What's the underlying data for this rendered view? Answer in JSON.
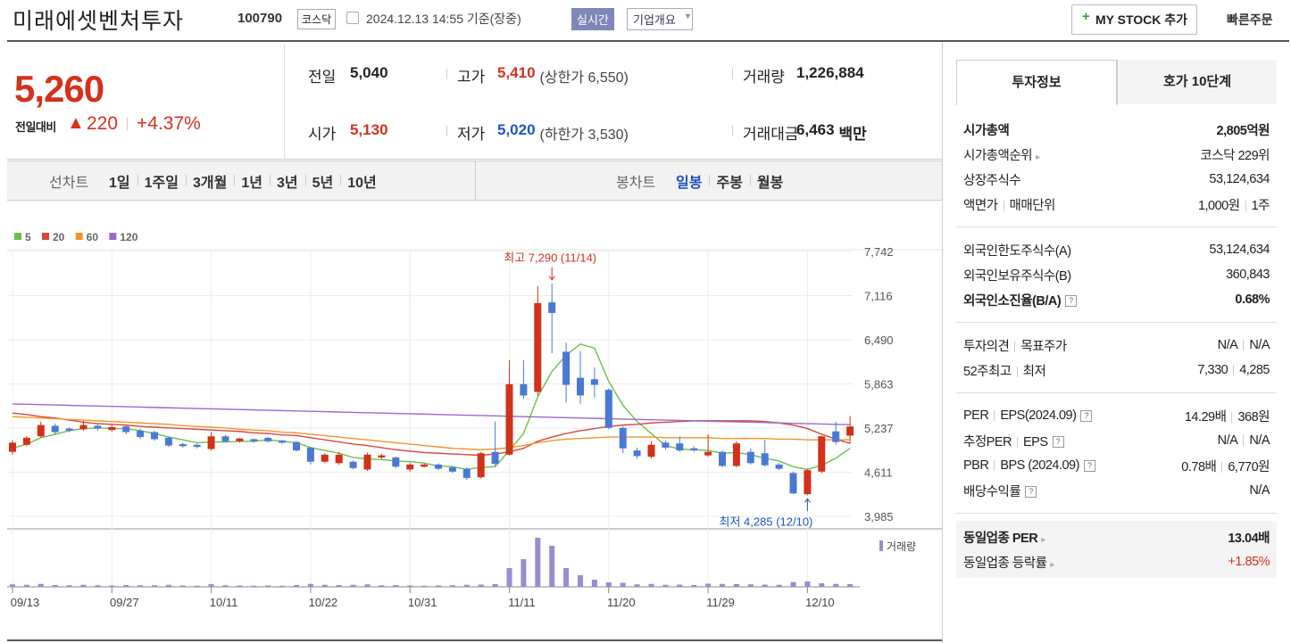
{
  "header": {
    "title": "미래에셋벤처투자",
    "code": "100790",
    "market": "코스닥",
    "timestamp": "2024.12.13 14:55 기준(장중)",
    "realtime": "실시간",
    "company": "기업개요",
    "mystock": "MY STOCK 추가",
    "quick_order": "빠른주문"
  },
  "price": {
    "current": "5,260",
    "change_label": "전일대비",
    "change": "220",
    "change_pct": "+4.37%"
  },
  "stats": [
    {
      "label": "전일",
      "value": "5,040"
    },
    {
      "label": "고가",
      "value": "5,410",
      "note": "(상한가 6,550)"
    },
    {
      "label": "거래량",
      "value": "1,226,884"
    },
    {
      "label": "시가",
      "value": "5,130"
    },
    {
      "label": "저가",
      "value": "5,020",
      "note": "(하한가 3,530)"
    },
    {
      "label": "거래대금",
      "value": "6,463",
      "unit": "백만"
    }
  ],
  "period_tabs": {
    "label": "선차트",
    "items": [
      "1일",
      "1주일",
      "3개월",
      "1년",
      "3년",
      "5년",
      "10년"
    ]
  },
  "candle_tabs": {
    "label": "봉차트",
    "items": [
      "일봉",
      "주봉",
      "월봉"
    ],
    "active": 0
  },
  "chart_data": {
    "type": "candlestick",
    "categories": [
      "09/13",
      null,
      null,
      null,
      null,
      null,
      null,
      "09/27",
      null,
      null,
      null,
      null,
      null,
      null,
      "10/11",
      null,
      null,
      null,
      null,
      null,
      null,
      "10/22",
      null,
      null,
      null,
      null,
      null,
      null,
      "10/31",
      null,
      null,
      null,
      null,
      null,
      null,
      "11/11",
      null,
      null,
      null,
      null,
      null,
      null,
      "11/20",
      null,
      null,
      null,
      null,
      null,
      null,
      "11/29",
      null,
      null,
      null,
      null,
      null,
      null,
      "12/10",
      null,
      null,
      null
    ],
    "open": [
      4900,
      5000,
      5120,
      5270,
      5230,
      5220,
      5270,
      5210,
      5260,
      5200,
      5180,
      5100,
      5010,
      5000,
      4940,
      5120,
      5050,
      5080,
      5100,
      5060,
      5040,
      4960,
      4760,
      4740,
      4760,
      4650,
      4820,
      4820,
      4650,
      4690,
      4720,
      4680,
      4660,
      4540,
      4900,
      4860,
      5860,
      5750,
      7020,
      6320,
      5950,
      5930,
      5780,
      5240,
      4920,
      4830,
      5030,
      5020,
      4950,
      4850,
      4900,
      4700,
      4900,
      4880,
      4720,
      4600,
      4300,
      4620,
      5190,
      5130
    ],
    "high": [
      5060,
      5120,
      5330,
      5300,
      5250,
      5340,
      5290,
      5280,
      5280,
      5230,
      5200,
      5120,
      5030,
      5020,
      5180,
      5140,
      5100,
      5090,
      5110,
      5070,
      5050,
      4970,
      4880,
      4900,
      4780,
      4890,
      4870,
      4830,
      4740,
      4740,
      4740,
      4700,
      4680,
      4900,
      5330,
      6200,
      6200,
      7250,
      7290,
      6450,
      6330,
      6100,
      5800,
      5260,
      4960,
      5050,
      5060,
      5120,
      4980,
      5150,
      4920,
      5050,
      4950,
      5070,
      4740,
      4620,
      4660,
      5130,
      5330,
      5410
    ],
    "low": [
      4860,
      4980,
      5100,
      5150,
      5180,
      5200,
      5200,
      5190,
      5150,
      5080,
      5060,
      4970,
      4960,
      4950,
      4920,
      5030,
      5030,
      5030,
      5030,
      5010,
      4900,
      4720,
      4740,
      4720,
      4650,
      4630,
      4800,
      4670,
      4620,
      4680,
      4640,
      4600,
      4500,
      4520,
      4700,
      4850,
      5650,
      5700,
      6300,
      5600,
      5580,
      5670,
      5220,
      4880,
      4800,
      4810,
      4930,
      4900,
      4900,
      4830,
      4680,
      4680,
      4720,
      4690,
      4640,
      4300,
      4285,
      4600,
      5000,
      5020
    ],
    "close": [
      5030,
      5100,
      5280,
      5180,
      5200,
      5280,
      5230,
      5250,
      5180,
      5110,
      5080,
      4990,
      4980,
      4970,
      5120,
      5050,
      5090,
      5050,
      5050,
      5030,
      4920,
      4760,
      4860,
      4860,
      4670,
      4860,
      4850,
      4690,
      4720,
      4720,
      4660,
      4620,
      4530,
      4880,
      4730,
      5860,
      5700,
      7010,
      6870,
      5850,
      5700,
      5850,
      5240,
      4950,
      4840,
      5000,
      4960,
      4920,
      4920,
      4900,
      4700,
      5020,
      4740,
      4710,
      4660,
      4310,
      4640,
      5120,
      5040,
      5260
    ],
    "volume": [
      1100000,
      900000,
      1300000,
      800000,
      700000,
      900000,
      700000,
      600000,
      800000,
      700000,
      700000,
      900000,
      600000,
      500000,
      1200000,
      700000,
      600000,
      500000,
      600000,
      500000,
      800000,
      1300000,
      900000,
      800000,
      900000,
      1100000,
      700000,
      800000,
      600000,
      500000,
      600000,
      700000,
      900000,
      1000000,
      1200000,
      8400000,
      12400000,
      22000000,
      18400000,
      8400000,
      5200000,
      3200000,
      2000000,
      1800000,
      1100000,
      1300000,
      900000,
      1000000,
      800000,
      1400000,
      1300000,
      1200000,
      1100000,
      1000000,
      900000,
      2100000,
      2400000,
      1600000,
      1300000,
      1226884
    ],
    "up_color": "#d2311a",
    "down_color": "#4a78d6",
    "volume_color": "#9b8bd0",
    "volume_label": "거래량",
    "series": [
      {
        "name": "5",
        "color": "#6cbf4a",
        "values": [
          4950,
          5010,
          5100,
          5150,
          5200,
          5230,
          5240,
          5230,
          5230,
          5200,
          5160,
          5110,
          5070,
          5030,
          5040,
          5040,
          5050,
          5050,
          5070,
          5050,
          5030,
          4960,
          4920,
          4880,
          4820,
          4800,
          4790,
          4770,
          4760,
          4740,
          4700,
          4690,
          4650,
          4680,
          4690,
          4920,
          5160,
          5680,
          6040,
          6270,
          6430,
          6370,
          5900,
          5560,
          5330,
          5160,
          4990,
          4940,
          4930,
          4920,
          4880,
          4890,
          4860,
          4810,
          4770,
          4690,
          4650,
          4710,
          4810,
          4950
        ]
      },
      {
        "name": "20",
        "color": "#d9473c",
        "values": [
          5450,
          5430,
          5400,
          5380,
          5350,
          5320,
          5300,
          5290,
          5280,
          5260,
          5250,
          5240,
          5230,
          5220,
          5210,
          5200,
          5190,
          5170,
          5160,
          5140,
          5130,
          5100,
          5070,
          5040,
          5010,
          4990,
          4960,
          4930,
          4910,
          4890,
          4880,
          4870,
          4860,
          4850,
          4870,
          4900,
          4950,
          5050,
          5110,
          5160,
          5200,
          5230,
          5260,
          5280,
          5290,
          5310,
          5320,
          5330,
          5340,
          5340,
          5340,
          5340,
          5340,
          5330,
          5310,
          5280,
          5230,
          5150,
          5080,
          5020
        ]
      },
      {
        "name": "60",
        "color": "#f2942a",
        "values": [
          5400,
          5390,
          5380,
          5370,
          5360,
          5350,
          5340,
          5330,
          5320,
          5310,
          5300,
          5290,
          5270,
          5260,
          5250,
          5240,
          5220,
          5210,
          5200,
          5180,
          5170,
          5150,
          5130,
          5110,
          5090,
          5070,
          5050,
          5030,
          5010,
          4990,
          4970,
          4950,
          4940,
          4930,
          4940,
          4960,
          4990,
          5030,
          5060,
          5080,
          5090,
          5100,
          5110,
          5110,
          5110,
          5110,
          5100,
          5100,
          5100,
          5100,
          5090,
          5090,
          5090,
          5090,
          5080,
          5080,
          5070,
          5070,
          5070,
          5070
        ]
      },
      {
        "name": "120",
        "color": "#9a69d0",
        "values": [
          5580,
          5575,
          5570,
          5565,
          5560,
          5555,
          5550,
          5545,
          5540,
          5535,
          5530,
          5525,
          5520,
          5515,
          5510,
          5505,
          5500,
          5495,
          5490,
          5485,
          5480,
          5475,
          5470,
          5465,
          5460,
          5455,
          5450,
          5445,
          5440,
          5435,
          5430,
          5425,
          5420,
          5415,
          5410,
          5405,
          5400,
          5395,
          5390,
          5385,
          5380,
          5375,
          5370,
          5365,
          5360,
          5355,
          5350,
          5345,
          5340,
          5335,
          5330,
          5325,
          5320,
          5315,
          5310,
          5305,
          5300,
          5295,
          5290,
          5285
        ]
      }
    ],
    "ylim": [
      3985,
      7742
    ],
    "yticks": [
      {
        "value": 3985,
        "label": "3,985"
      },
      {
        "value": 4611,
        "label": "4,611"
      },
      {
        "value": 5237,
        "label": "5,237"
      },
      {
        "value": 5863,
        "label": "5,863"
      },
      {
        "value": 6490,
        "label": "6,490"
      },
      {
        "value": 7116,
        "label": "7,116"
      },
      {
        "value": 7742,
        "label": "7,742"
      }
    ],
    "grid": true,
    "high_annotation": "최고 7,290 (11/14)",
    "low_annotation": "최저 4,285 (12/10)"
  },
  "info_tabs": [
    "투자정보",
    "호가 10단계"
  ],
  "info_groups": [
    [
      {
        "labels": [
          "시가총액"
        ],
        "values": [
          "2,805억원"
        ],
        "strong": true
      },
      {
        "labels": [
          "시가총액순위"
        ],
        "values": [
          "코스닥 229위"
        ],
        "link": true
      },
      {
        "labels": [
          "상장주식수"
        ],
        "values": [
          "53,124,634"
        ]
      },
      {
        "labels": [
          "액면가",
          "매매단위"
        ],
        "values": [
          "1,000원",
          "1주"
        ]
      }
    ],
    [
      {
        "labels": [
          "외국인한도주식수(A)"
        ],
        "values": [
          "53,124,634"
        ]
      },
      {
        "labels": [
          "외국인보유주식수(B)"
        ],
        "values": [
          "360,843"
        ]
      },
      {
        "labels": [
          "외국인소진율(B/A)"
        ],
        "values": [
          "0.68%"
        ],
        "strong": true,
        "help": true
      }
    ],
    [
      {
        "labels": [
          "투자의견",
          "목표주가"
        ],
        "values": [
          "N/A",
          "N/A"
        ]
      },
      {
        "labels": [
          "52주최고",
          "최저"
        ],
        "values": [
          "7,330",
          "4,285"
        ]
      }
    ],
    [
      {
        "labels": [
          "PER",
          "EPS(2024.09)"
        ],
        "values": [
          "14.29배",
          "368원"
        ],
        "help": true
      },
      {
        "labels": [
          "추정PER",
          "EPS"
        ],
        "values": [
          "N/A",
          "N/A"
        ],
        "help": true
      },
      {
        "labels": [
          "PBR",
          "BPS (2024.09)"
        ],
        "values": [
          "0.78배",
          "6,770원"
        ],
        "help": true
      },
      {
        "labels": [
          "배당수익률"
        ],
        "values": [
          "N/A"
        ],
        "help": true
      }
    ],
    [
      {
        "labels": [
          "동일업종 PER"
        ],
        "values": [
          "13.04배"
        ],
        "strong": true,
        "link": true
      },
      {
        "labels": [
          "동일업종 등락률"
        ],
        "values": [
          "+1.85%"
        ],
        "link": true,
        "red": true
      }
    ]
  ]
}
